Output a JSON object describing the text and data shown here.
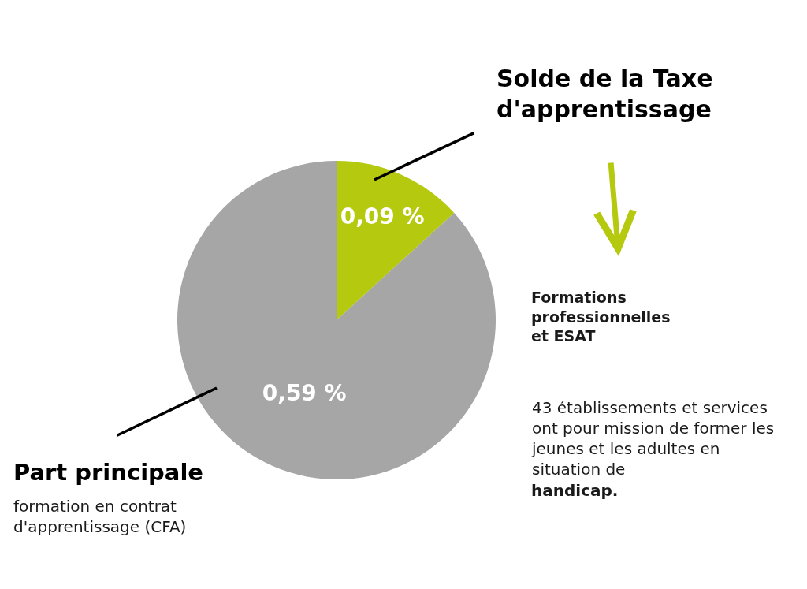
{
  "chart_data": {
    "type": "pie",
    "categories": [
      "Solde de la Taxe d'apprentissage",
      "Part principale"
    ],
    "values": [
      0.09,
      0.59
    ],
    "colors": [
      "#b5c90f",
      "#a6a6a6"
    ],
    "value_labels": [
      "0,09 %",
      "0,59 %"
    ],
    "legend": false,
    "annotations": [
      "formation en contrat d'apprentissage (CFA)",
      "Formations professionnelles et ESAT",
      "43 établissements et services ont pour mission de former les jeunes et les adultes en situation de",
      "handicap."
    ]
  }
}
